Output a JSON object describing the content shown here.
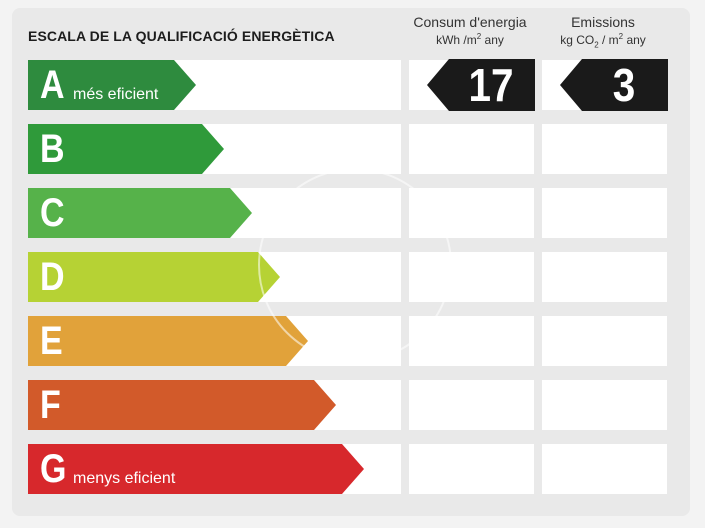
{
  "scale": {
    "title": "ESCALA DE LA QUALIFICACIÓ ENERGÈTICA",
    "classes": [
      {
        "letter": "A",
        "description": "més eficient",
        "color": "#2e8b3e"
      },
      {
        "letter": "B",
        "description": "",
        "color": "#2f9a3a"
      },
      {
        "letter": "C",
        "description": "",
        "color": "#56b24a"
      },
      {
        "letter": "D",
        "description": "",
        "color": "#b6d234"
      },
      {
        "letter": "E",
        "description": "",
        "color": "#e1a23a"
      },
      {
        "letter": "F",
        "description": "",
        "color": "#d25a2a"
      },
      {
        "letter": "G",
        "description": "menys eficient",
        "color": "#d7282c"
      }
    ]
  },
  "consumption": {
    "header": "Consum d'energia",
    "unit_base": "kWh /m",
    "unit_sup": "2",
    "unit_tail": " any",
    "value": "17",
    "rating": "A"
  },
  "emissions": {
    "header": "Emissions",
    "unit_a": "kg CO",
    "unit_sub": "2",
    "unit_b": " / m",
    "unit_sup": "2",
    "unit_tail": " any",
    "value": "3",
    "rating": "A"
  },
  "colors": {
    "badge": "#1a1a1a",
    "card": "#e9e9e9"
  }
}
